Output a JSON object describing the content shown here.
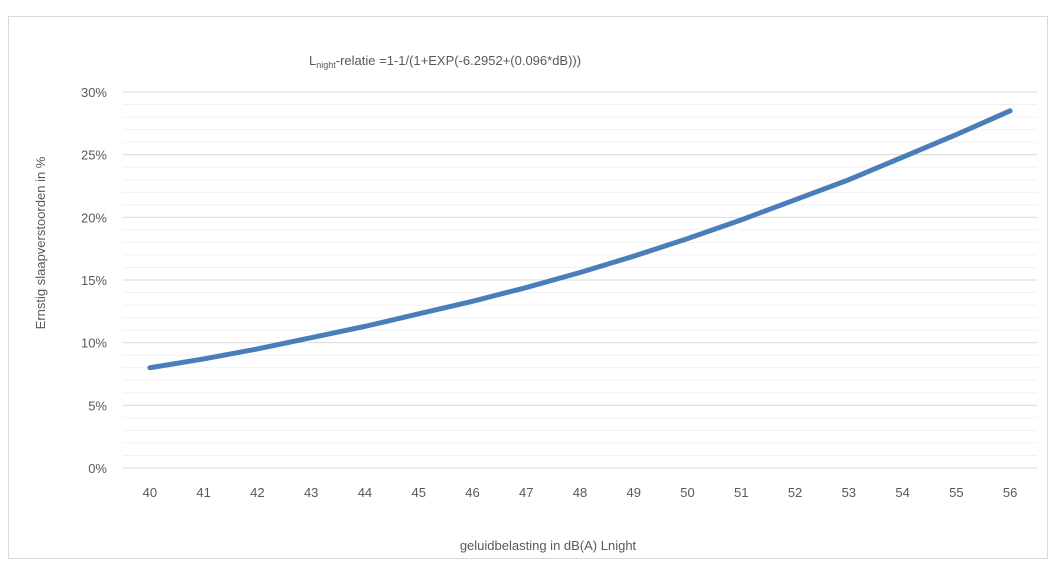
{
  "chart_data": {
    "type": "line",
    "title_main": "L",
    "title_sub": "night",
    "title_rest": "-relatie =1-1/(1+EXP(-6.2952+(0.096*dB)))",
    "xlabel": "geluidbelasting in dB(A) Lnight",
    "ylabel": "Ernstig slaapverstoorden in %",
    "categories": [
      "40",
      "41",
      "42",
      "43",
      "44",
      "45",
      "46",
      "47",
      "48",
      "49",
      "50",
      "51",
      "52",
      "53",
      "54",
      "55",
      "56"
    ],
    "series": [
      {
        "values": [
          8.0,
          8.7,
          9.5,
          10.4,
          11.3,
          12.3,
          13.3,
          14.4,
          15.6,
          16.9,
          18.3,
          19.8,
          21.4,
          23.0,
          24.8,
          26.6,
          28.5
        ]
      }
    ],
    "yticks": [
      "0%",
      "5%",
      "10%",
      "15%",
      "20%",
      "25%",
      "30%"
    ],
    "ylim": [
      0,
      30
    ],
    "grid": "major and minor horizontal",
    "legend": "none",
    "color": "#4a7ebb"
  }
}
